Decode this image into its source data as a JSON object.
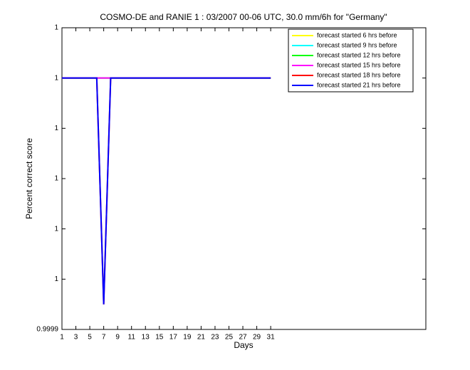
{
  "chart_data": {
    "type": "line",
    "title": "COSMO-DE and RANIE 1 : 03/2007 00-06 UTC, 30.0 mm/6h for \"Germany\"",
    "x_label": "Days",
    "y_label": "Percent correct score",
    "x": [
      1,
      2,
      3,
      4,
      5,
      6,
      7,
      8,
      9,
      10,
      11,
      12,
      13,
      14,
      15,
      16,
      17,
      18,
      19,
      20,
      21,
      22,
      23,
      24,
      25,
      26,
      27,
      28,
      29,
      30,
      31
    ],
    "xlim": [
      1,
      53.3
    ],
    "xticks": [
      1,
      3,
      5,
      7,
      9,
      11,
      13,
      15,
      17,
      19,
      21,
      23,
      25,
      27,
      29,
      31
    ],
    "ylim": [
      0.9999,
      1.00002
    ],
    "yticks": [
      {
        "value": 0.9999,
        "label": "0.9999"
      },
      {
        "value": 0.99992,
        "label": "1"
      },
      {
        "value": 0.99994,
        "label": "1"
      },
      {
        "value": 0.99996,
        "label": "1"
      },
      {
        "value": 0.99998,
        "label": "1"
      },
      1,
      {
        "value": 1.00002,
        "label": "1"
      }
    ],
    "legend": "upper right",
    "series": [
      {
        "name": "forecast started 6 hrs before",
        "color": "#ffff00",
        "values": [
          1,
          1,
          1,
          1,
          1,
          1,
          1,
          1,
          1,
          1,
          1,
          1,
          1,
          1,
          1,
          1,
          1,
          1,
          1,
          1,
          1,
          1,
          1,
          1,
          1,
          1,
          1,
          1,
          1,
          1,
          1
        ]
      },
      {
        "name": "forecast started 9 hrs before",
        "color": "#00ffff",
        "values": [
          1,
          1,
          1,
          1,
          1,
          1,
          1,
          1,
          1,
          1,
          1,
          1,
          1,
          1,
          1,
          1,
          1,
          1,
          1,
          1,
          1,
          1,
          1,
          1,
          1,
          1,
          1,
          1,
          1,
          1,
          1
        ]
      },
      {
        "name": "forecast started 12 hrs before",
        "color": "#00ff00",
        "values": [
          1,
          1,
          1,
          1,
          1,
          1,
          1,
          1,
          1,
          1,
          1,
          1,
          1,
          1,
          1,
          1,
          1,
          1,
          1,
          1,
          1,
          1,
          1,
          1,
          1,
          1,
          1,
          1,
          1,
          1,
          1
        ]
      },
      {
        "name": "forecast started 15 hrs before",
        "color": "#ff00ff",
        "values": [
          1,
          1,
          1,
          1,
          1,
          1,
          1,
          1,
          1,
          1,
          1,
          1,
          1,
          1,
          1,
          1,
          1,
          1,
          1,
          1,
          1,
          1,
          1,
          1,
          1,
          1,
          1,
          1,
          1,
          1,
          1
        ]
      },
      {
        "name": "forecast started 18 hrs before",
        "color": "#ff0000",
        "values": [
          1,
          1,
          1,
          1,
          1,
          1,
          0.99991,
          1,
          1,
          1,
          1,
          1,
          1,
          1,
          1,
          1,
          1,
          1,
          1,
          1,
          1,
          1,
          1,
          1,
          1,
          1,
          1,
          1,
          1,
          1,
          1
        ]
      },
      {
        "name": "forecast started 21 hrs before",
        "color": "#0000ff",
        "values": [
          1,
          1,
          1,
          1,
          1,
          1,
          0.99991,
          1,
          1,
          1,
          1,
          1,
          1,
          1,
          1,
          1,
          1,
          1,
          1,
          1,
          1,
          1,
          1,
          1,
          1,
          1,
          1,
          1,
          1,
          1,
          1
        ]
      }
    ]
  }
}
